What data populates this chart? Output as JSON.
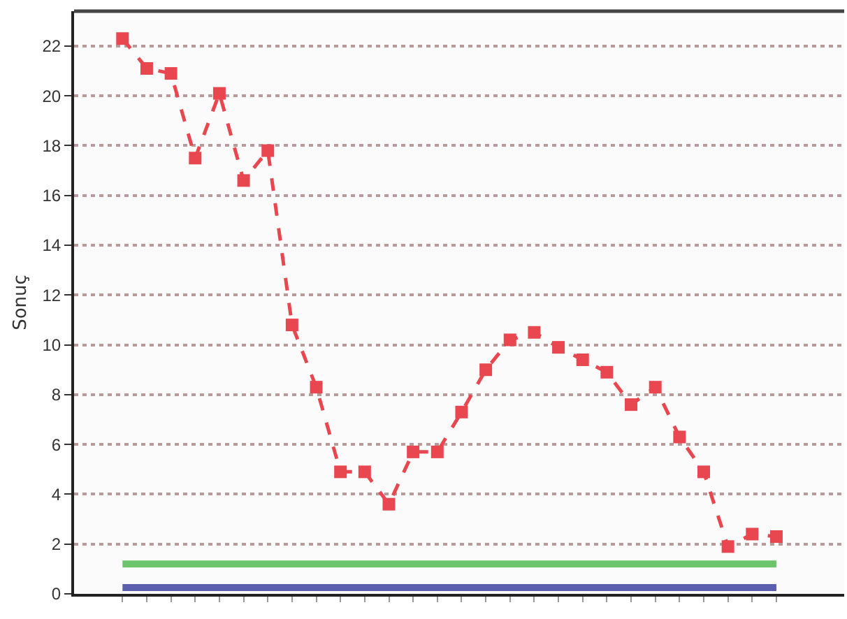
{
  "chart_data": {
    "type": "line",
    "ylabel": "Sonuç",
    "categories": [
      null,
      null,
      null,
      null,
      null,
      null,
      null,
      null,
      null,
      null,
      null,
      null,
      null,
      null,
      null,
      null,
      null,
      null,
      null,
      null,
      null,
      null,
      null,
      null,
      null,
      null,
      null,
      null
    ],
    "series": [
      {
        "color": "#e8474f",
        "marker": "square",
        "line_style": "dashed",
        "values": [
          22.3,
          21.1,
          20.9,
          17.5,
          20.1,
          16.6,
          17.8,
          10.8,
          8.3,
          4.9,
          4.9,
          3.6,
          5.7,
          5.7,
          7.3,
          9.0,
          10.2,
          10.5,
          9.9,
          9.4,
          8.9,
          7.6,
          8.3,
          6.3,
          4.9,
          1.9,
          2.4,
          2.3
        ]
      },
      {
        "color": "#6cc56c",
        "marker": "none",
        "line_style": "solid",
        "values": [
          1.2,
          1.2,
          1.2,
          1.2,
          1.2,
          1.2,
          1.2,
          1.2,
          1.2,
          1.2,
          1.2,
          1.2,
          1.2,
          1.2,
          1.2,
          1.2,
          1.2,
          1.2,
          1.2,
          1.2,
          1.2,
          1.2,
          1.2,
          1.2,
          1.2,
          1.2,
          1.2,
          1.2
        ]
      },
      {
        "color": "#5b5fae",
        "marker": "none",
        "line_style": "solid",
        "values": [
          0.25,
          0.25,
          0.25,
          0.25,
          0.25,
          0.25,
          0.25,
          0.25,
          0.25,
          0.25,
          0.25,
          0.25,
          0.25,
          0.25,
          0.25,
          0.25,
          0.25,
          0.25,
          0.25,
          0.25,
          0.25,
          0.25,
          0.25,
          0.25,
          0.25,
          0.25,
          0.25,
          0.25
        ]
      }
    ],
    "ylim": [
      0,
      23.4
    ],
    "yticks": [
      0,
      2,
      4,
      6,
      8,
      10,
      12,
      14,
      16,
      18,
      20,
      22
    ],
    "grid": "y",
    "tick_labels": "y"
  }
}
